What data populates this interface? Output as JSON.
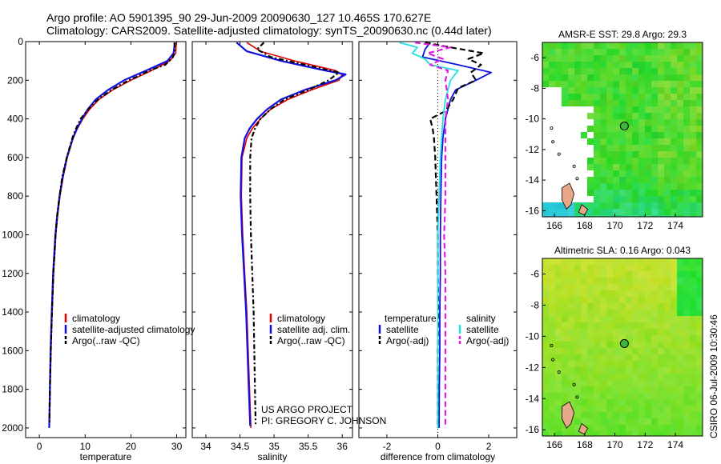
{
  "header": {
    "line1": "Argo profile: AO 5901395_90 29-Jun-2009 20090630_127 10.465S 170.627E",
    "line2": "Climatology: CARS2009. Satellite-adjusted climatology: synTS_20090630.nc (0.44d later)"
  },
  "colors": {
    "climatology": "#e00000",
    "satellite": "#1010e0",
    "argo": "#000000",
    "salinity_sat": "#20e0e0",
    "salinity_argo": "#e020e0",
    "land": "#e8a888"
  },
  "chart_data": [
    {
      "type": "line",
      "name": "temperature",
      "xlabel": "temperature",
      "xlim": [
        -3,
        32
      ],
      "ylim": [
        2050,
        0
      ],
      "xticks": [
        0,
        10,
        20,
        30
      ],
      "yticks": [
        0,
        200,
        400,
        600,
        800,
        1000,
        1200,
        1400,
        1600,
        1800,
        2000
      ],
      "legend": [
        "climatology",
        "satellite-adjusted climatology",
        "Argo(..raw -QC)"
      ],
      "series": [
        {
          "name": "climatology",
          "depth": [
            5,
            60,
            100,
            150,
            200,
            250,
            300,
            350,
            400,
            450,
            500,
            600,
            700,
            800,
            900,
            1000,
            1200,
            1400,
            1600,
            1800,
            2000
          ],
          "values": [
            29.9,
            29.8,
            28.5,
            24.5,
            20,
            16,
            13,
            11,
            9.5,
            8.3,
            7.4,
            6.1,
            5.2,
            4.5,
            4.0,
            3.6,
            3.1,
            2.8,
            2.55,
            2.35,
            2.2
          ]
        },
        {
          "name": "satellite-adjusted climatology",
          "depth": [
            5,
            60,
            100,
            150,
            200,
            250,
            300,
            350,
            400,
            450,
            500,
            600,
            700,
            800,
            900,
            1000,
            1200,
            1400,
            1600,
            1800,
            2000
          ],
          "values": [
            29.6,
            29.3,
            28.0,
            23.3,
            18.5,
            15,
            12.3,
            10.6,
            9.3,
            8.2,
            7.3,
            6.0,
            5.1,
            4.4,
            3.9,
            3.5,
            3.0,
            2.7,
            2.45,
            2.3,
            2.15
          ]
        },
        {
          "name": "Argo(..raw -QC)",
          "depth": [
            5,
            40,
            80,
            120,
            150,
            180,
            200,
            250,
            300,
            350,
            400,
            450,
            500,
            600,
            700,
            800,
            900,
            1000,
            1200,
            1400,
            1600,
            1800,
            1980
          ],
          "values": [
            29.5,
            29.6,
            29.2,
            27.5,
            24,
            21.5,
            19.5,
            15.8,
            12.8,
            10.7,
            9.0,
            8.0,
            7.2,
            6.0,
            5.0,
            4.4,
            3.9,
            3.55,
            3.05,
            2.75,
            2.5,
            2.3,
            2.2
          ]
        }
      ]
    },
    {
      "type": "line",
      "name": "salinity",
      "xlabel": "salinity",
      "xlim": [
        33.8,
        36.15
      ],
      "ylim": [
        2050,
        0
      ],
      "xticks": [
        34,
        34.5,
        35,
        35.5,
        36
      ],
      "yticks": [
        0,
        200,
        400,
        600,
        800,
        1000,
        1200,
        1400,
        1600,
        1800,
        2000
      ],
      "legend": [
        "climatology",
        "satellite adj. clim.",
        "Argo(..raw -QC)"
      ],
      "annotation": [
        "US ARGO PROJECT",
        "PI: GREGORY C. JOHNSON"
      ],
      "series": [
        {
          "name": "climatology",
          "depth": [
            5,
            50,
            100,
            150,
            170,
            200,
            250,
            300,
            350,
            400,
            450,
            500,
            600,
            800,
            1000,
            1200,
            1400,
            1600,
            1800,
            2000
          ],
          "values": [
            34.6,
            34.8,
            35.3,
            35.9,
            36.0,
            35.95,
            35.55,
            35.2,
            34.95,
            34.8,
            34.68,
            34.6,
            34.53,
            34.52,
            34.54,
            34.57,
            34.6,
            34.62,
            34.64,
            34.66
          ]
        },
        {
          "name": "satellite adj. clim.",
          "depth": [
            5,
            50,
            100,
            150,
            170,
            200,
            250,
            300,
            350,
            400,
            450,
            500,
            600,
            800,
            1000,
            1200,
            1400,
            1600,
            1800,
            1990
          ],
          "values": [
            34.45,
            34.6,
            35.1,
            35.75,
            36.05,
            35.9,
            35.45,
            35.1,
            34.9,
            34.75,
            34.64,
            34.57,
            34.52,
            34.51,
            34.53,
            34.56,
            34.59,
            34.61,
            34.63,
            34.65
          ]
        },
        {
          "name": "Argo(..raw -QC)",
          "depth": [
            5,
            40,
            80,
            120,
            160,
            200,
            250,
            300,
            350,
            400,
            450,
            500,
            600,
            800,
            1000,
            1200,
            1400,
            1600,
            1800,
            1980
          ],
          "values": [
            34.85,
            34.75,
            34.95,
            35.45,
            35.95,
            35.8,
            35.5,
            35.15,
            34.95,
            34.8,
            34.72,
            34.67,
            34.65,
            34.65,
            34.66,
            34.68,
            34.7,
            34.71,
            34.72,
            34.73
          ]
        }
      ]
    },
    {
      "type": "line",
      "name": "difference",
      "xlabel": "difference from climatology",
      "xlim": [
        -3.1,
        3.1
      ],
      "ylim": [
        2050,
        0
      ],
      "xticks": [
        -2,
        0,
        2
      ],
      "yticks": [
        0,
        200,
        400,
        600,
        800,
        1000,
        1200,
        1400,
        1600,
        1800,
        2000
      ],
      "legend_temperature_title": "temperature",
      "legend_salinity_title": "salinity",
      "legend": [
        "satellite",
        "Argo(-adj)",
        "satellite",
        "Argo(-adj)"
      ],
      "series": [
        {
          "name": "temperature satellite",
          "depth": [
            5,
            40,
            80,
            120,
            160,
            200,
            250,
            300,
            400,
            500,
            600,
            800,
            1000,
            1200,
            1400,
            1600,
            1800,
            2000
          ],
          "values": [
            -0.3,
            -0.5,
            -0.6,
            0.8,
            2.1,
            1.5,
            0.7,
            0.5,
            0.3,
            0.2,
            0.15,
            0.12,
            0.1,
            0.1,
            0.08,
            0.08,
            0.06,
            0.05
          ]
        },
        {
          "name": "temperature Argo(-adj)",
          "depth": [
            5,
            30,
            60,
            90,
            120,
            160,
            200,
            240,
            300,
            360,
            400,
            450,
            500,
            600,
            800,
            1000,
            1200,
            1400,
            1600,
            1800,
            2000
          ],
          "values": [
            -0.5,
            0.5,
            1.8,
            1.2,
            1.7,
            1.3,
            1.5,
            0.8,
            0.6,
            0.3,
            -0.3,
            -0.2,
            -0.15,
            -0.1,
            -0.05,
            0.0,
            0.0,
            0.02,
            0.0,
            0.0,
            0.0
          ]
        },
        {
          "name": "salinity satellite",
          "depth": [
            5,
            30,
            60,
            90,
            120,
            150,
            200,
            300,
            400,
            600,
            800,
            1000,
            1200,
            1400,
            1600,
            1800,
            2000
          ],
          "values": [
            -1.5,
            -0.8,
            -1.0,
            -0.5,
            -0.3,
            0.8,
            0.5,
            0.3,
            0.2,
            0.1,
            0.05,
            0.0,
            0.0,
            0.0,
            0.0,
            0.0,
            0.0
          ]
        },
        {
          "name": "salinity Argo(-adj)",
          "depth": [
            5,
            30,
            60,
            90,
            120,
            150,
            200,
            300,
            400,
            500,
            600,
            800,
            1000,
            1200,
            1400,
            1600,
            1800,
            2000
          ],
          "values": [
            -0.9,
            0.5,
            -0.4,
            0.2,
            -0.3,
            0.4,
            0.3,
            0.4,
            0.3,
            0.3,
            0.3,
            0.3,
            0.25,
            0.3,
            0.3,
            0.3,
            0.3,
            0.3
          ]
        }
      ]
    }
  ],
  "maps": [
    {
      "title": "AMSR-E SST: 29.8 Argo: 29.3",
      "xticks": [
        "166",
        "168",
        "170",
        "172",
        "174"
      ],
      "yticks": [
        "-6",
        "-8",
        "-10",
        "-12",
        "-14",
        "-16"
      ],
      "float_lon": 170.627,
      "float_lat": -10.465
    },
    {
      "title": "Altimetric SLA: 0.16 Argo: 0.043",
      "xticks": [
        "166",
        "168",
        "170",
        "172",
        "174"
      ],
      "yticks": [
        "-6",
        "-8",
        "-10",
        "-12",
        "-14",
        "-16"
      ],
      "float_lon": 170.627,
      "float_lat": -10.465
    }
  ],
  "footer": {
    "stamp": "CSIRO 06-Jul-2009 10:30:46"
  }
}
